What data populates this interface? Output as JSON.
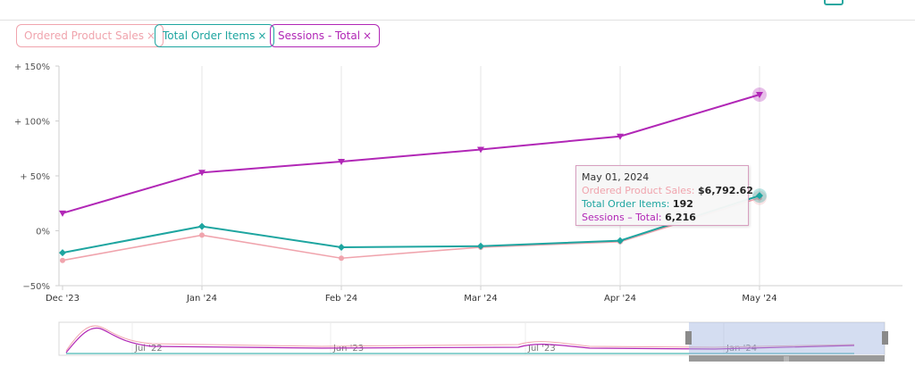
{
  "filters": [
    {
      "label": "Ordered Product Sales",
      "close": "×",
      "color": "#f0a4ad"
    },
    {
      "label": "Total Order Items",
      "close": "×",
      "color": "#1ea5a0"
    },
    {
      "label": "Sessions - Total",
      "close": "×",
      "color": "#b127b6"
    }
  ],
  "tooltip": {
    "date": "May 01, 2024",
    "rows": [
      {
        "label": "Ordered Product Sales:",
        "value": "$6,792.62"
      },
      {
        "label": "Total Order Items:",
        "value": "192"
      },
      {
        "label": "Sessions – Total:",
        "value": "6,216"
      }
    ]
  },
  "chart_data": {
    "type": "line",
    "categories": [
      "Dec '23",
      "Jan '24",
      "Feb '24",
      "Mar '24",
      "Apr '24",
      "May '24"
    ],
    "y_ticks": [
      {
        "label": "+ 150%",
        "value": 150
      },
      {
        "label": "+ 100%",
        "value": 100
      },
      {
        "label": "+ 50%",
        "value": 50
      },
      {
        "label": "0%",
        "value": 0
      },
      {
        "label": "−50%",
        "value": -50
      }
    ],
    "ylim": [
      -50,
      150
    ],
    "grid": "vertical",
    "series": [
      {
        "name": "Ordered Product Sales",
        "color": "#f0a4ad",
        "values": [
          -27,
          -4,
          -25,
          -15,
          -10,
          30
        ]
      },
      {
        "name": "Total Order Items",
        "color": "#1ea5a0",
        "values": [
          -20,
          4,
          -15,
          -14,
          -9,
          32
        ]
      },
      {
        "name": "Sessions - Total",
        "color": "#b127b6",
        "values": [
          16,
          53,
          63,
          74,
          86,
          124
        ]
      }
    ],
    "highlight_index": 5,
    "navigator": {
      "labels": [
        "Jul '22",
        "Jan '23",
        "Jul '23",
        "Jan '24"
      ]
    }
  }
}
